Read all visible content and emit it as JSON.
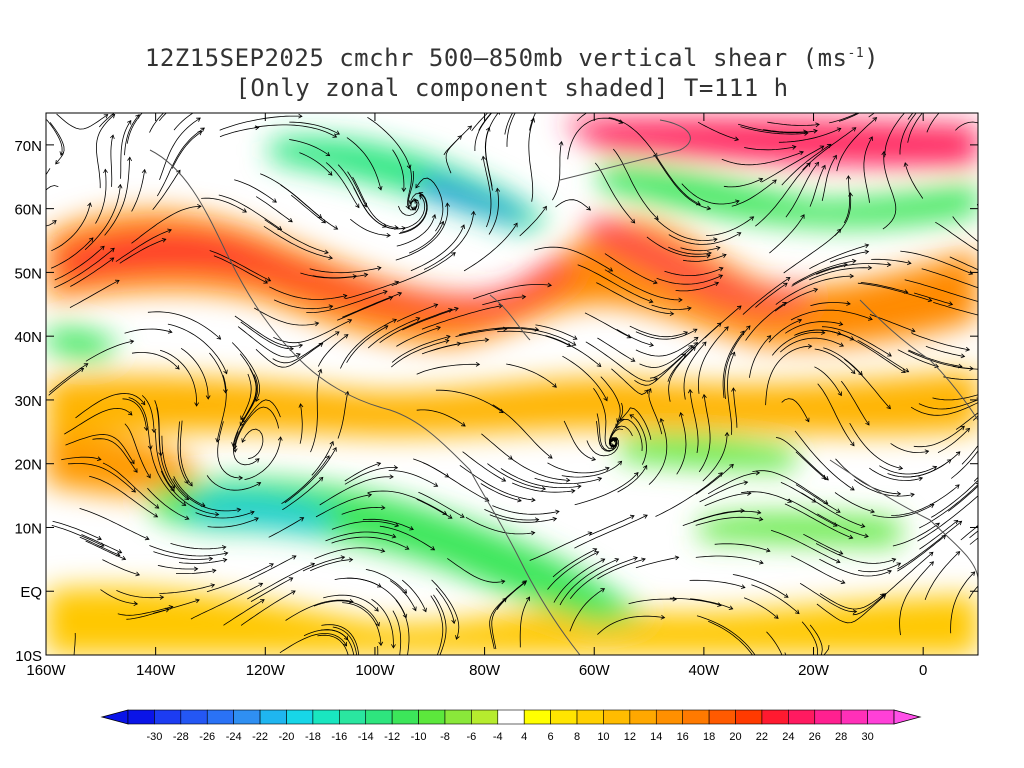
{
  "title": {
    "line1_prefix": "12Z15SEP2025 cmchr 500–850mb vertical shear (ms",
    "line1_sup": "-1",
    "line1_suffix": ")",
    "line2": "[Only zonal component shaded] T=111 h"
  },
  "map": {
    "lat_labels": [
      "70N",
      "60N",
      "50N",
      "40N",
      "30N",
      "20N",
      "10N",
      "EQ",
      "10S"
    ],
    "lat_values": [
      70,
      60,
      50,
      40,
      30,
      20,
      10,
      0,
      -10
    ],
    "lon_labels": [
      "160W",
      "140W",
      "120W",
      "100W",
      "80W",
      "60W",
      "40W",
      "20W",
      "0"
    ],
    "lon_values": [
      -160,
      -140,
      -120,
      -100,
      -80,
      -60,
      -40,
      -20,
      0
    ],
    "lon_range": [
      -160,
      10
    ],
    "lat_range": [
      -10,
      75
    ]
  },
  "colorbar": {
    "labels": [
      "-30",
      "-28",
      "-26",
      "-24",
      "-22",
      "-20",
      "-18",
      "-16",
      "-14",
      "-12",
      "-10",
      "-8",
      "-6",
      "-4",
      "4",
      "6",
      "8",
      "10",
      "12",
      "14",
      "16",
      "18",
      "20",
      "22",
      "24",
      "26",
      "28",
      "30"
    ],
    "colors": [
      "#0a14e8",
      "#1c3cf2",
      "#2457f4",
      "#2a72f6",
      "#2f8ff2",
      "#1fb6f0",
      "#17d6e8",
      "#19e6c0",
      "#2ae6a0",
      "#2ee57e",
      "#3ce65a",
      "#5ce83c",
      "#8ae83a",
      "#b6ec2e",
      "#ffffff",
      "#ffff00",
      "#ffe500",
      "#ffd000",
      "#ffbc00",
      "#ffa800",
      "#ff9000",
      "#ff7a00",
      "#ff5a00",
      "#ff3a00",
      "#ff1a30",
      "#ff1a60",
      "#ff2090",
      "#ff30b8",
      "#ff40d8"
    ]
  }
}
